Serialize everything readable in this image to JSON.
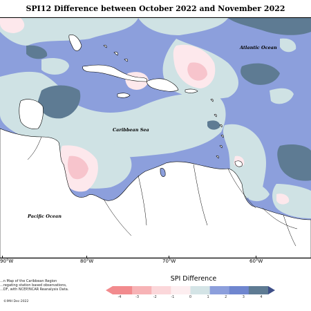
{
  "title": "SPI12 Difference between October 2022 and November 2022",
  "map": {
    "labels": {
      "atlantic": "Atlantic Ocean",
      "caribbean": "Caribbean Sea",
      "pacific": "Pacific Ocean"
    },
    "longitude_ticks": [
      "90°W",
      "80°W",
      "70°W",
      "60°W"
    ]
  },
  "credits": {
    "line1": "...n Map of the Caribbean Region",
    "line2": "...regating station based observations,",
    "line3": "...DF, with NCEP/NCAR Reanalysis Data.",
    "copyright": "©IMH Dec-2022"
  },
  "legend": {
    "title": "SPI Difference",
    "ticks": [
      "-4",
      "-3",
      "-2",
      "-1",
      "0",
      "1",
      "2",
      "3",
      "4"
    ],
    "colors": [
      "#f28b8e",
      "#f7b3b6",
      "#fbd7da",
      "#fdeef0",
      "#d4e4e6",
      "#8c9fdc",
      "#6f86cf",
      "#5e7b93",
      "#3e4f88"
    ]
  },
  "colors": {
    "land": "#ffffff",
    "ocean_base": "#8c9fdc",
    "light_teal": "#cfe2e4",
    "dark_teal": "#5e7b93",
    "pink_light": "#fde8ec",
    "pink_mid": "#f7c4cc"
  }
}
